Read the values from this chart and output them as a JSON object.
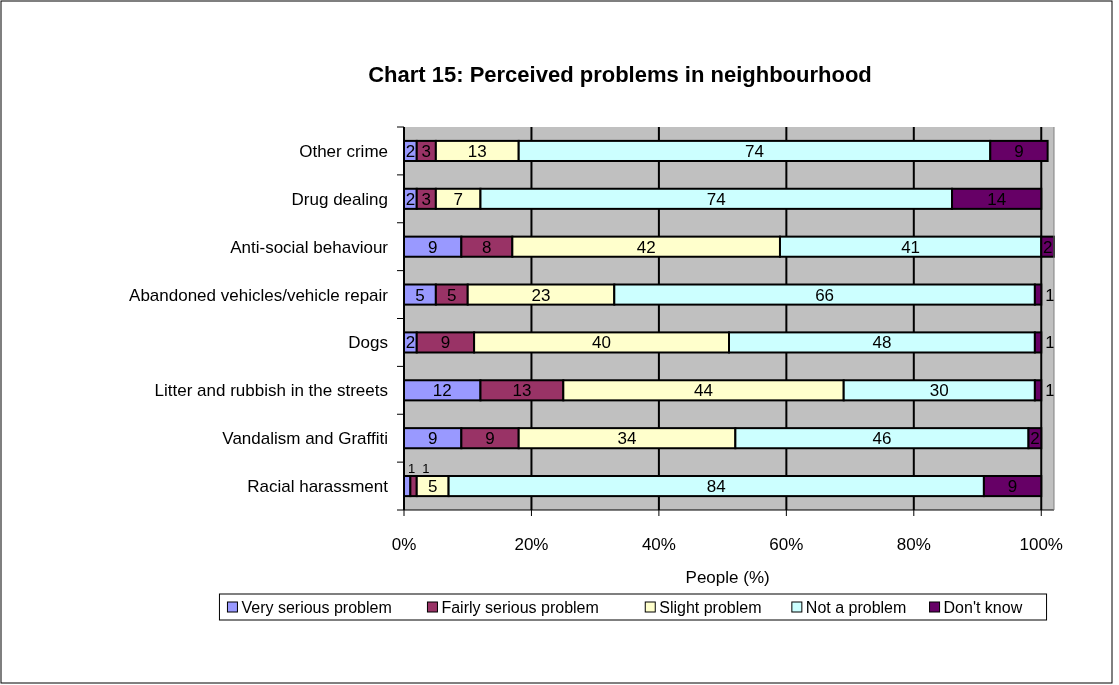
{
  "chart_data": {
    "type": "bar",
    "title": "Chart 15: Perceived problems in neighbourhood",
    "xlabel": "People (%)",
    "orientation": "horizontal",
    "stacked": true,
    "categories": [
      "Other crime",
      "Drug dealing",
      "Anti-social behaviour",
      "Abandoned vehicles/vehicle repair",
      "Dogs",
      "Litter and rubbish in the streets",
      "Vandalism and Graffiti",
      "Racial harassment"
    ],
    "series": [
      {
        "name": "Very serious problem",
        "color": "#9999ff",
        "values": [
          2,
          2,
          9,
          5,
          2,
          12,
          9,
          1
        ]
      },
      {
        "name": "Fairly serious problem",
        "color": "#993366",
        "values": [
          3,
          3,
          8,
          5,
          9,
          13,
          9,
          1
        ]
      },
      {
        "name": "Slight problem",
        "color": "#ffffcc",
        "values": [
          13,
          7,
          42,
          23,
          40,
          44,
          34,
          5
        ]
      },
      {
        "name": "Not a problem",
        "color": "#ccffff",
        "values": [
          74,
          74,
          41,
          66,
          48,
          30,
          46,
          84
        ]
      },
      {
        "name": "Don't know",
        "color": "#660066",
        "values": [
          9,
          14,
          2,
          1,
          1,
          1,
          2,
          9
        ]
      }
    ],
    "xlim": [
      0,
      102
    ],
    "xticks": [
      {
        "value": 0,
        "label": "0%"
      },
      {
        "value": 20,
        "label": "20%"
      },
      {
        "value": 40,
        "label": "40%"
      },
      {
        "value": 60,
        "label": "60%"
      },
      {
        "value": 80,
        "label": "80%"
      },
      {
        "value": 100,
        "label": "100%"
      }
    ],
    "grid": "x",
    "legend": "bottom",
    "data_labels": true
  }
}
